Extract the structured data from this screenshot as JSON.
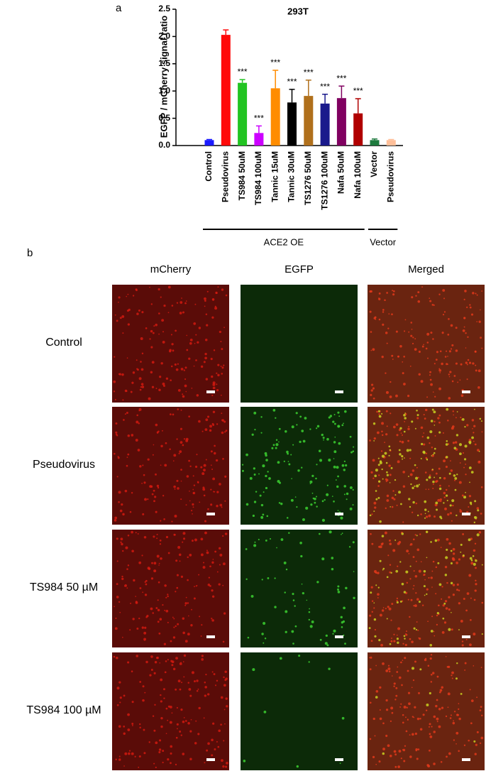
{
  "chart_data": {
    "type": "bar",
    "panel_label": "a",
    "title": "293T",
    "y_label": "EGFP / mCherry signal ratio",
    "categories": [
      "Control",
      "Pseudovirus",
      "TS984 50uM",
      "TS984 100uM",
      "Tannic 15uM",
      "Tannic 30uM",
      "TS1276 50uM",
      "TS1276 100uM",
      "Nafa 50uM",
      "Nafa 100uM",
      "Vector",
      "Pseudovirus"
    ],
    "values": [
      0.1,
      2.03,
      1.15,
      0.23,
      1.05,
      0.79,
      0.91,
      0.77,
      0.87,
      0.59,
      0.1,
      0.1
    ],
    "errors": [
      0.01,
      0.09,
      0.06,
      0.13,
      0.33,
      0.24,
      0.29,
      0.17,
      0.22,
      0.27,
      0.02,
      0.01
    ],
    "colors": [
      "#1a1aff",
      "#ff0a0a",
      "#22c422",
      "#cc00ff",
      "#ff8c00",
      "#000000",
      "#b0701c",
      "#1a1a8c",
      "#800060",
      "#b00000",
      "#1e7a3e",
      "#ffbf99"
    ],
    "annotations": [
      {
        "text": "***",
        "category": "TS984 50uM"
      },
      {
        "text": "***",
        "category": "TS984 100uM"
      },
      {
        "text": "***",
        "category": "Tannic 15uM"
      },
      {
        "text": "***",
        "category": "Tannic 30uM"
      },
      {
        "text": "***",
        "category": "TS1276 50uM"
      },
      {
        "text": "***",
        "category": "TS1276 100uM"
      },
      {
        "text": "***",
        "category": "Nafa 50uM"
      },
      {
        "text": "***",
        "category": "Nafa 100uM"
      }
    ],
    "groups": [
      {
        "label": "ACE2 OE",
        "count": 10
      },
      {
        "label": "Vector",
        "count": 2
      }
    ],
    "ylim": [
      0,
      2.5
    ],
    "yticks": [
      {
        "value": 0,
        "label": "0.0"
      },
      0.5,
      {
        "value": 1,
        "label": "1.0"
      },
      1.5,
      {
        "value": 2,
        "label": "2.0"
      },
      2.5
    ]
  },
  "panel_b": {
    "label": "b",
    "columns": [
      "mCherry",
      "EGFP",
      "Merged"
    ],
    "rows": [
      "Control",
      "Pseudovirus",
      "TS984 50 µM",
      "TS984 100 µM"
    ]
  }
}
